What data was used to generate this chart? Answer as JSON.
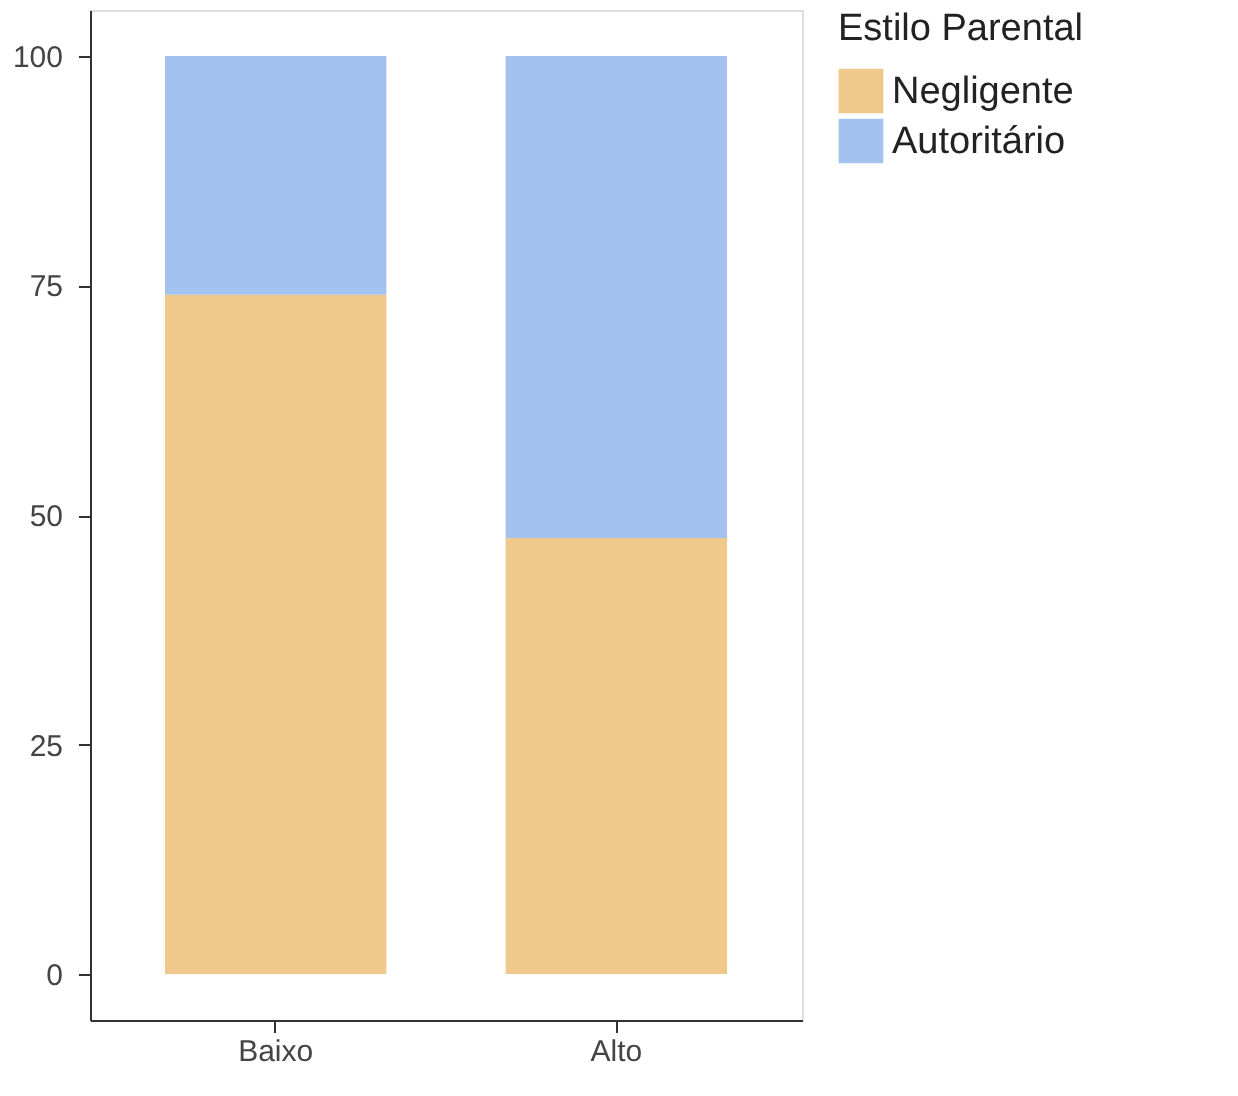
{
  "chart_data": {
    "type": "bar",
    "stacked": true,
    "categories": [
      "Baixo",
      "Alto"
    ],
    "series": [
      {
        "name": "Negligente",
        "color": "#efc98b",
        "values": [
          74,
          47.5
        ]
      },
      {
        "name": "Autoritário",
        "color": "#a4c2f0",
        "values": [
          26,
          52.5
        ]
      }
    ],
    "legend_title": "Estilo Parental",
    "legend": "right",
    "ylim": [
      -5,
      105
    ],
    "yticks": [
      0,
      25,
      50,
      75,
      100
    ],
    "grid": false
  }
}
